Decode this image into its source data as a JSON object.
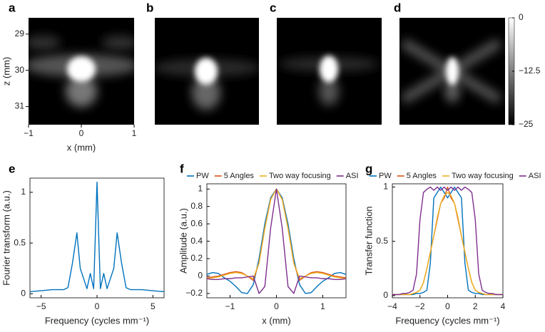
{
  "chart_data": [
    {
      "type": "image",
      "label": "a",
      "xlabel": "x (mm)",
      "ylabel": "z (mm)",
      "xlim": [
        -1,
        1
      ],
      "xticks": [
        {
          "value": -1,
          "label": "−1"
        },
        0,
        1
      ],
      "ylim": [
        31.5,
        28.55
      ],
      "yticks": [
        29,
        30,
        31
      ]
    },
    {
      "type": "image",
      "label": "b"
    },
    {
      "type": "image",
      "label": "c"
    },
    {
      "type": "image",
      "label": "d"
    },
    {
      "type": "colorbar",
      "ylim": [
        -25,
        0
      ],
      "yticks": [
        0,
        {
          "value": -12.5,
          "label": "−12.5"
        },
        {
          "value": -25,
          "label": "−25"
        }
      ]
    },
    {
      "type": "line",
      "label": "e",
      "xlabel": "Frequency (cycles mm⁻¹)",
      "ylabel": "Fourier transform (a.u.)",
      "color": "#0072bd",
      "xlim": [
        -6,
        6
      ],
      "xticks": [
        {
          "value": -5,
          "label": "−5"
        },
        0,
        5
      ],
      "ylim": [
        -0.04,
        1.14
      ],
      "yticks": [
        0,
        0.5,
        1
      ],
      "x": [
        -6,
        -5,
        -4,
        -3,
        -2.6,
        -2.2,
        -1.8,
        -1.5,
        -1.2,
        -0.9,
        -0.6,
        -0.3,
        0,
        0.3,
        0.6,
        0.9,
        1.2,
        1.5,
        1.8,
        2.2,
        2.6,
        3,
        4,
        5,
        6
      ],
      "values": [
        0.02,
        0.03,
        0.04,
        0.04,
        0.06,
        0.3,
        0.6,
        0.25,
        0.15,
        0.05,
        0.2,
        0.05,
        1.1,
        0.05,
        0.2,
        0.05,
        0.15,
        0.25,
        0.6,
        0.3,
        0.06,
        0.04,
        0.04,
        0.03,
        0.02
      ]
    },
    {
      "type": "line",
      "label": "f",
      "xlabel": "x (mm)",
      "ylabel": "Amplitude (a.u.)",
      "xlim": [
        -1.5,
        1.5
      ],
      "xticks": [
        {
          "value": -1,
          "label": "−1"
        },
        0,
        1
      ],
      "ylim": [
        -0.25,
        1.06
      ],
      "yticks": [
        {
          "value": -0.2,
          "label": "−0.2"
        },
        0,
        0.2,
        0.4,
        0.6,
        0.8,
        1
      ],
      "x": [
        -1.5,
        -1.375,
        -1.25,
        -1.125,
        -1,
        -0.875,
        -0.75,
        -0.625,
        -0.5,
        -0.375,
        -0.25,
        -0.125,
        0,
        0.125,
        0.25,
        0.375,
        0.5,
        0.625,
        0.75,
        0.875,
        1,
        1.125,
        1.25,
        1.375,
        1.5
      ],
      "series": [
        {
          "name": "PW",
          "color": "#0072bd",
          "values": [
            0.02,
            0.04,
            0.03,
            -0.02,
            -0.06,
            -0.12,
            -0.19,
            -0.2,
            -0.1,
            0.2,
            0.6,
            0.9,
            1,
            0.9,
            0.6,
            0.2,
            -0.1,
            -0.2,
            -0.19,
            -0.12,
            -0.06,
            -0.02,
            0.03,
            0.04,
            0.02
          ]
        },
        {
          "name": "5 Angles",
          "color": "#d95319",
          "values": [
            -0.02,
            -0.01,
            0,
            0.02,
            0.04,
            0.05,
            0.04,
            0,
            -0.05,
            0.15,
            0.55,
            0.88,
            1,
            0.88,
            0.55,
            0.15,
            -0.05,
            0,
            0.04,
            0.05,
            0.04,
            0.02,
            0,
            -0.01,
            -0.02
          ]
        },
        {
          "name": "Two way focusing",
          "color": "#edb120",
          "values": [
            -0.03,
            -0.02,
            -0.01,
            0.01,
            0.03,
            0.04,
            0.03,
            0,
            -0.03,
            0.15,
            0.55,
            0.88,
            1,
            0.88,
            0.55,
            0.15,
            -0.03,
            0,
            0.03,
            0.04,
            0.03,
            0.01,
            -0.01,
            -0.02,
            -0.03
          ]
        },
        {
          "name": "ASI",
          "color": "#7e2f8e",
          "values": [
            -0.03,
            -0.04,
            -0.04,
            -0.03,
            -0.03,
            -0.02,
            -0.02,
            -0.01,
            0,
            -0.2,
            -0.12,
            0.55,
            1,
            0.55,
            -0.12,
            -0.2,
            0,
            -0.01,
            -0.02,
            -0.02,
            -0.03,
            -0.03,
            -0.04,
            -0.04,
            -0.03
          ]
        }
      ]
    },
    {
      "type": "line",
      "label": "g",
      "xlabel": "Frequency (cycles mm⁻¹)",
      "ylabel": "Transfer function",
      "xlim": [
        -4,
        4
      ],
      "xticks": [
        {
          "value": -4,
          "label": "−4"
        },
        {
          "value": -2,
          "label": "−2"
        },
        0,
        2,
        4
      ],
      "ylim": [
        -0.02,
        1.03
      ],
      "yticks": [
        0,
        0.5,
        1
      ],
      "x": [
        -4,
        -3.75,
        -3.5,
        -3.25,
        -3,
        -2.75,
        -2.5,
        -2.25,
        -2,
        -1.75,
        -1.5,
        -1.25,
        -1,
        -0.75,
        -0.5,
        -0.25,
        0,
        0.25,
        0.5,
        0.75,
        1,
        1.25,
        1.5,
        1.75,
        2,
        2.25,
        2.5,
        2.75,
        3,
        3.25,
        3.5,
        3.75,
        4
      ],
      "series": [
        {
          "name": "PW",
          "color": "#0072bd",
          "values": [
            0.01,
            0.01,
            0.01,
            0.01,
            0.01,
            0.01,
            0.01,
            0.02,
            0.02,
            0.03,
            0.05,
            0.3,
            0.9,
            0.95,
            1,
            0.95,
            0.9,
            0.95,
            1,
            0.95,
            0.9,
            0.3,
            0.05,
            0.03,
            0.02,
            0.02,
            0.01,
            0.01,
            0.01,
            0.01,
            0.01,
            0.01,
            0.01
          ]
        },
        {
          "name": "5 Angles",
          "color": "#d95319",
          "values": [
            0.01,
            0.01,
            0.01,
            0.01,
            0.01,
            0.01,
            0.02,
            0.03,
            0.05,
            0.12,
            0.25,
            0.4,
            0.55,
            0.7,
            0.85,
            0.9,
            1,
            0.9,
            0.85,
            0.7,
            0.55,
            0.4,
            0.25,
            0.12,
            0.05,
            0.03,
            0.02,
            0.01,
            0.01,
            0.01,
            0.01,
            0.01,
            0.01
          ]
        },
        {
          "name": "Two way focusing",
          "color": "#edb120",
          "values": [
            0.01,
            0.01,
            0.01,
            0.01,
            0.01,
            0.01,
            0.02,
            0.03,
            0.05,
            0.12,
            0.25,
            0.4,
            0.55,
            0.72,
            0.85,
            0.92,
            0.95,
            0.92,
            0.85,
            0.72,
            0.55,
            0.4,
            0.25,
            0.12,
            0.05,
            0.03,
            0.02,
            0.01,
            0.01,
            0.01,
            0.01,
            0.01,
            0.01
          ]
        },
        {
          "name": "ASI",
          "color": "#7e2f8e",
          "values": [
            0.01,
            0.01,
            0.01,
            0.02,
            0.02,
            0.03,
            0.05,
            0.2,
            0.7,
            0.95,
            0.98,
            1,
            0.97,
            1,
            0.97,
            1,
            0.97,
            1,
            0.97,
            1,
            0.97,
            1,
            0.98,
            0.95,
            0.7,
            0.2,
            0.05,
            0.03,
            0.02,
            0.02,
            0.01,
            0.01,
            0.01
          ]
        }
      ]
    }
  ]
}
